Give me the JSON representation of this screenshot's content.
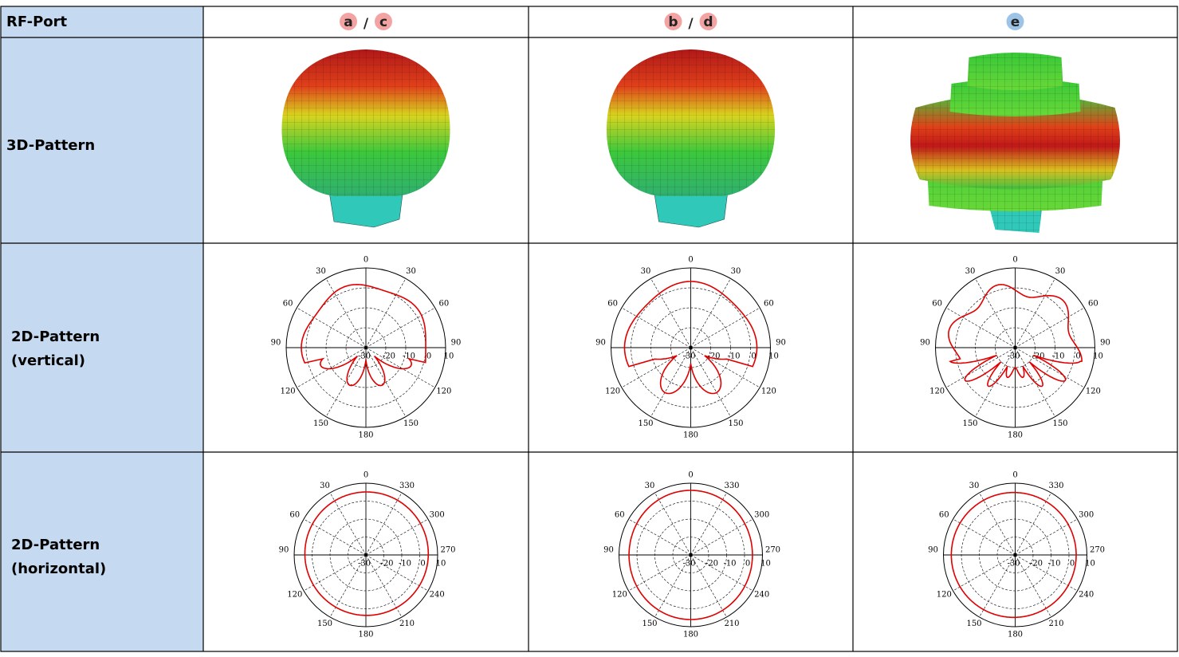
{
  "header": {
    "label": "RF-Port",
    "ports": [
      {
        "badges": [
          "a",
          "c"
        ],
        "separator": "/"
      },
      {
        "badges": [
          "b",
          "d"
        ],
        "separator": "/"
      },
      {
        "badges": [
          "e"
        ]
      }
    ]
  },
  "rows": [
    {
      "label": [
        "3D-Pattern"
      ]
    },
    {
      "label": [
        "2D-Pattern",
        "(vertical)"
      ]
    },
    {
      "label": [
        "2D-Pattern",
        "(horizontal)"
      ]
    }
  ],
  "polar_vertical": {
    "rlim": [
      -30,
      10
    ],
    "rticks": [
      -30,
      -20,
      -10,
      0,
      10
    ],
    "angle_ticks": [
      0,
      30,
      60,
      90,
      120,
      150,
      180,
      {
        "value": 210,
        "label": "150"
      },
      {
        "value": 240,
        "label": "120"
      },
      {
        "value": 270,
        "label": "90"
      },
      {
        "value": 300,
        "label": "60"
      },
      {
        "value": 330,
        "label": "30"
      }
    ]
  },
  "polar_horizontal": {
    "rlim": [
      -30,
      10
    ],
    "rticks": [
      -30,
      -20,
      -10,
      0,
      10
    ],
    "angle_ticks": [
      0,
      30,
      60,
      90,
      120,
      150,
      180,
      210,
      240,
      270,
      300,
      330
    ]
  }
}
